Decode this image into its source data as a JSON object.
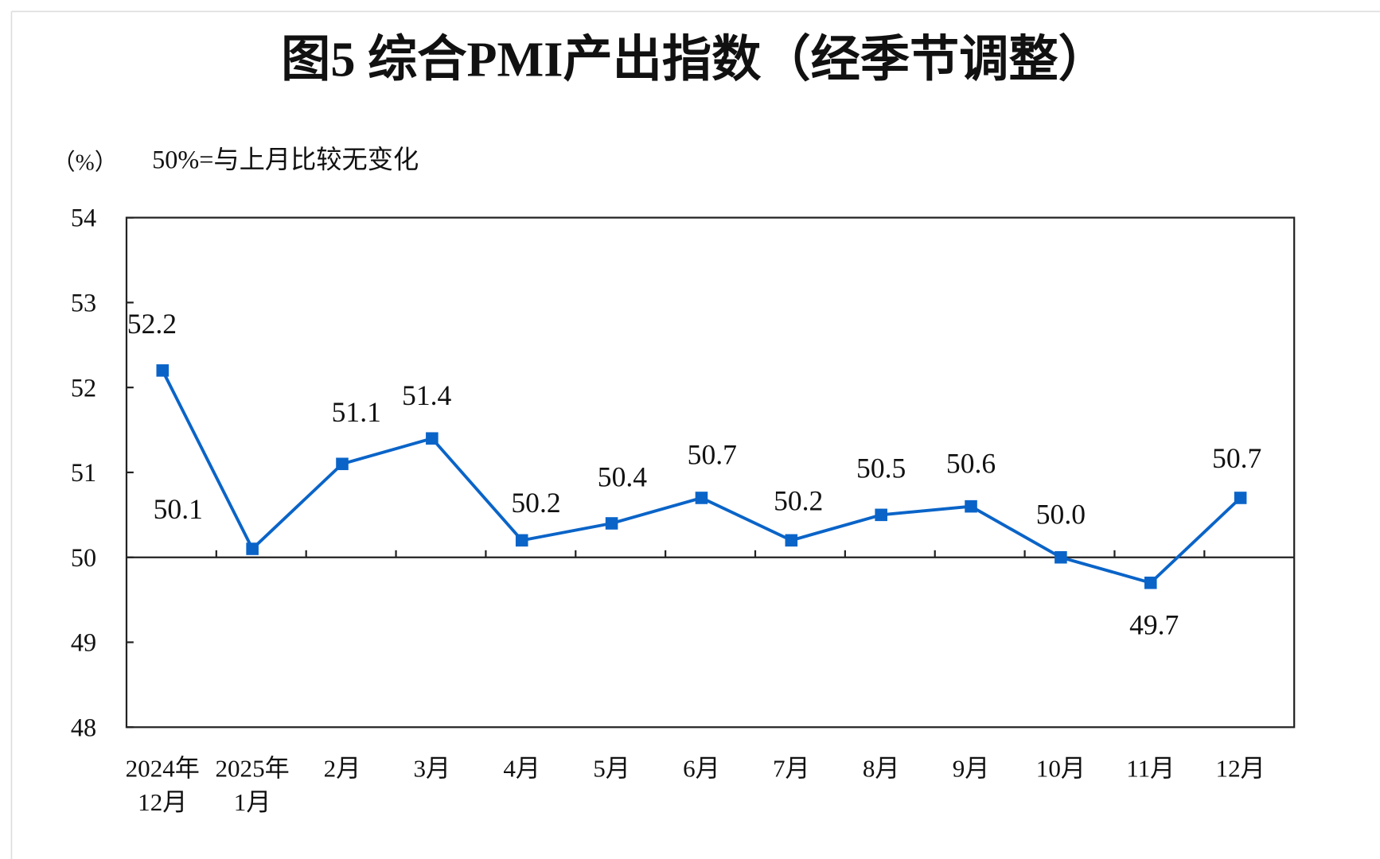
{
  "chart_data": {
    "type": "line",
    "title": "图5  综合PMI产出指数（经季节调整）",
    "ylabel": "（%）",
    "annotation": "50%=与上月比较无变化",
    "categories": [
      [
        "2024年",
        "12月"
      ],
      [
        "2025年",
        "1月"
      ],
      [
        "2月"
      ],
      [
        "3月"
      ],
      [
        "4月"
      ],
      [
        "5月"
      ],
      [
        "6月"
      ],
      [
        "7月"
      ],
      [
        "8月"
      ],
      [
        "9月"
      ],
      [
        "10月"
      ],
      [
        "11月"
      ],
      [
        "12月"
      ]
    ],
    "series": [
      {
        "name": "综合PMI产出指数",
        "color": "#0a64c8",
        "values": [
          52.2,
          50.1,
          51.1,
          51.4,
          50.2,
          50.4,
          50.7,
          50.2,
          50.5,
          50.6,
          50.0,
          49.7,
          50.7
        ],
        "labels": [
          "52.2",
          "50.1",
          "51.1",
          "51.4",
          "50.2",
          "50.4",
          "50.7",
          "50.2",
          "50.5",
          "50.6",
          "50.0",
          "49.7",
          "50.7"
        ]
      }
    ],
    "ylim": [
      48,
      54
    ],
    "yticks": [
      "48",
      "49",
      "50",
      "51",
      "52",
      "53",
      "54"
    ],
    "reference_line": 50,
    "grid": false,
    "legend": "none"
  }
}
